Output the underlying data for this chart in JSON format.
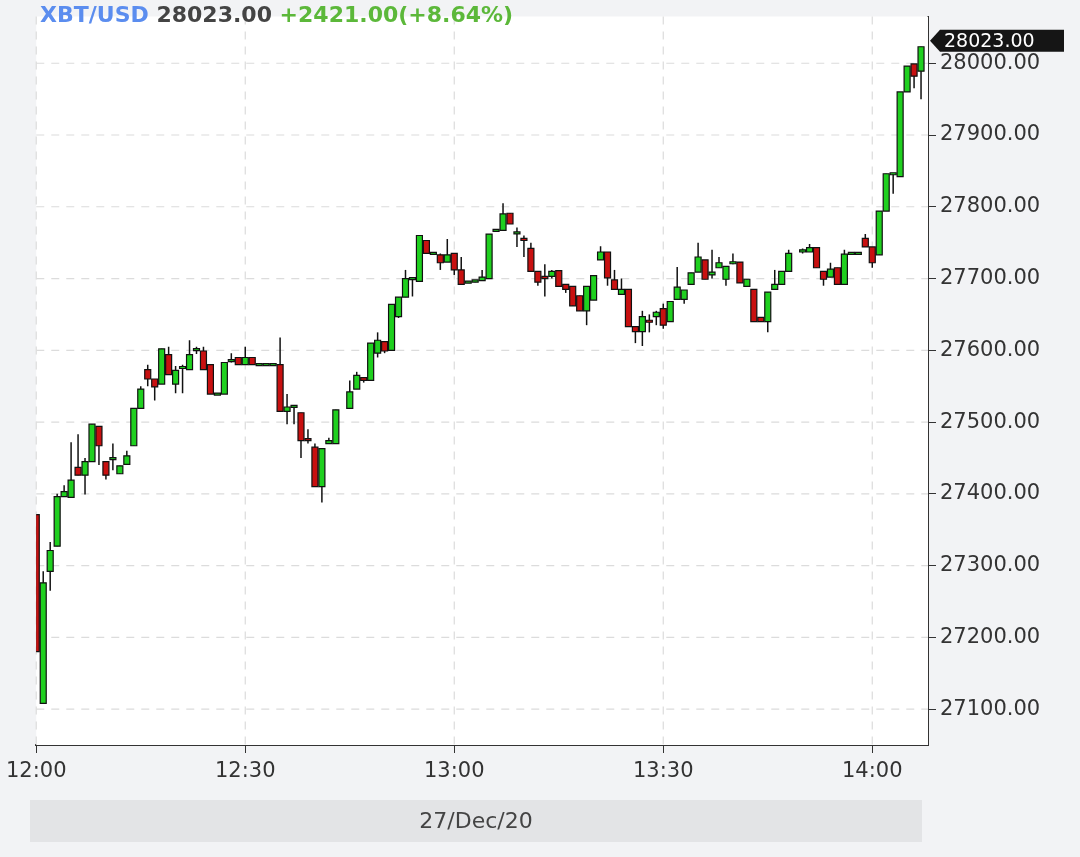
{
  "chart_data": {
    "type": "candlestick",
    "title": "XBT/USD 28023.00",
    "subtitle": "+2421.00(+8.64%)",
    "xlabel": "27/Dec/20",
    "x": [
      "--12-27T12:00",
      "--12-27T12:01",
      "--12-27T12:02",
      "--12-27T12:03",
      "--12-27T12:04",
      "--12-27T12:05",
      "--12-27T12:06",
      "--12-27T12:07",
      "--12-27T12:08",
      "--12-27T12:09",
      "--12-27T12:10",
      "--12-27T12:11",
      "--12-27T12:12",
      "--12-27T12:13",
      "--12-27T12:14",
      "--12-27T12:15",
      "--12-27T12:16",
      "--12-27T12:17",
      "--12-27T12:18",
      "--12-27T12:19",
      "--12-27T12:20",
      "--12-27T12:21",
      "--12-27T12:22",
      "--12-27T12:23",
      "--12-27T12:24",
      "--12-27T12:25",
      "--12-27T12:26",
      "--12-27T12:27",
      "--12-27T12:28",
      "--12-27T12:29",
      "--12-27T12:30",
      "--12-27T12:31",
      "--12-27T12:32",
      "--12-27T12:33",
      "--12-27T12:34",
      "--12-27T12:35",
      "--12-27T12:36",
      "--12-27T12:37",
      "--12-27T12:38",
      "--12-27T12:39",
      "--12-27T12:40",
      "--12-27T12:41",
      "--12-27T12:42",
      "--12-27T12:43",
      "--12-27T12:45",
      "--12-27T12:46",
      "--12-27T12:47",
      "--12-27T12:48",
      "--12-27T12:49",
      "--12-27T12:50",
      "--12-27T12:51",
      "--12-27T12:52",
      "--12-27T12:53",
      "--12-27T12:54",
      "--12-27T12:55",
      "--12-27T12:56",
      "--12-27T12:57",
      "--12-27T12:58",
      "--12-27T12:59",
      "--12-27T13:00",
      "--12-27T13:01",
      "--12-27T13:02",
      "--12-27T13:03",
      "--12-27T13:04",
      "--12-27T13:05",
      "--12-27T13:06",
      "--12-27T13:07",
      "--12-27T13:08",
      "--12-27T13:09",
      "--12-27T13:10",
      "--12-27T13:11",
      "--12-27T13:12",
      "--12-27T13:13",
      "--12-27T13:14",
      "--12-27T13:15",
      "--12-27T13:16",
      "--12-27T13:17",
      "--12-27T13:18",
      "--12-27T13:19",
      "--12-27T13:20",
      "--12-27T13:21",
      "--12-27T13:22",
      "--12-27T13:23",
      "--12-27T13:24",
      "--12-27T13:25",
      "--12-27T13:26",
      "--12-27T13:27",
      "--12-27T13:28",
      "--12-27T13:29",
      "--12-27T13:30",
      "--12-27T13:31",
      "--12-27T13:32",
      "--12-27T13:33",
      "--12-27T13:34",
      "--12-27T13:35",
      "--12-27T13:36",
      "--12-27T13:37",
      "--12-27T13:38",
      "--12-27T13:39",
      "--12-27T13:40",
      "--12-27T13:41",
      "--12-27T13:42",
      "--12-27T13:43",
      "--12-27T13:44",
      "--12-27T13:45",
      "--12-27T13:46",
      "--12-27T13:47",
      "--12-27T13:48",
      "--12-27T13:50",
      "--12-27T13:51",
      "--12-27T13:52",
      "--12-27T13:53",
      "--12-27T13:54",
      "--12-27T13:55",
      "--12-27T13:56",
      "--12-27T13:57",
      "--12-27T13:58",
      "--12-27T13:59",
      "--12-27T14:00",
      "--12-27T14:01",
      "--12-27T14:02",
      "--12-27T14:03",
      "--12-27T14:04",
      "--12-27T14:05",
      "--12-27T14:06",
      "--12-27T14:07"
    ],
    "ohlc": [
      [
        27371,
        27371,
        27180,
        27180
      ],
      [
        27108,
        27292,
        27108,
        27276
      ],
      [
        27292,
        27333,
        27265,
        27321
      ],
      [
        27327,
        27400,
        27327,
        27396
      ],
      [
        27396,
        27412,
        27396,
        27403
      ],
      [
        27395,
        27472,
        27395,
        27419
      ],
      [
        27437,
        27483,
        27426,
        27426
      ],
      [
        27426,
        27450,
        27399,
        27445
      ],
      [
        27445,
        27497,
        27445,
        27497
      ],
      [
        27494,
        27494,
        27440,
        27467
      ],
      [
        27445,
        27445,
        27420,
        27426
      ],
      [
        27449,
        27470,
        27433,
        27449
      ],
      [
        27428,
        27439,
        27428,
        27439
      ],
      [
        27441,
        27460,
        27441,
        27453
      ],
      [
        27467,
        27519,
        27467,
        27519
      ],
      [
        27519,
        27550,
        27519,
        27546
      ],
      [
        27573,
        27580,
        27550,
        27560
      ],
      [
        27560,
        27560,
        27530,
        27549
      ],
      [
        27553,
        27602,
        27553,
        27602
      ],
      [
        27594,
        27605,
        27566,
        27566
      ],
      [
        27553,
        27578,
        27540,
        27572
      ],
      [
        27575,
        27580,
        27540,
        27577
      ],
      [
        27573,
        27614,
        27573,
        27594
      ],
      [
        27600,
        27605,
        27595,
        27602
      ],
      [
        27599,
        27605,
        27573,
        27573
      ],
      [
        27580,
        27580,
        27539,
        27539
      ],
      [
        27539,
        27539,
        27539,
        27539
      ],
      [
        27539,
        27583,
        27539,
        27583
      ],
      [
        27585,
        27596,
        27583,
        27586
      ],
      [
        27590,
        27590,
        27580,
        27580
      ],
      [
        27580,
        27605,
        27580,
        27590
      ],
      [
        27590,
        27590,
        27580,
        27580
      ],
      [
        27580,
        27580,
        27580,
        27580
      ],
      [
        27580,
        27580,
        27580,
        27580
      ],
      [
        27580,
        27580,
        27580,
        27580
      ],
      [
        27580,
        27618,
        27515,
        27515
      ],
      [
        27515,
        27539,
        27497,
        27521
      ],
      [
        27522,
        27523,
        27497,
        27522
      ],
      [
        27513,
        27513,
        27450,
        27474
      ],
      [
        27477,
        27490,
        27470,
        27474
      ],
      [
        27465,
        27470,
        27410,
        27410
      ],
      [
        27410,
        27463,
        27388,
        27463
      ],
      [
        27470,
        27478,
        27470,
        27474
      ],
      [
        27470,
        27517,
        27470,
        27517
      ],
      [
        27519,
        27558,
        27519,
        27542
      ],
      [
        27546,
        27570,
        27546,
        27565
      ],
      [
        27562,
        27562,
        27555,
        27558
      ],
      [
        27558,
        27610,
        27558,
        27610
      ],
      [
        27596,
        27625,
        27590,
        27614
      ],
      [
        27612,
        27612,
        27596,
        27599
      ],
      [
        27600,
        27664,
        27600,
        27664
      ],
      [
        27647,
        27674,
        27645,
        27674
      ],
      [
        27674,
        27712,
        27674,
        27700
      ],
      [
        27700,
        27700,
        27675,
        27700
      ],
      [
        27696,
        27760,
        27696,
        27760
      ],
      [
        27753,
        27753,
        27735,
        27735
      ],
      [
        27735,
        27735,
        27735,
        27735
      ],
      [
        27733,
        27735,
        27712,
        27722
      ],
      [
        27723,
        27755,
        27723,
        27733
      ],
      [
        27735,
        27735,
        27705,
        27712
      ],
      [
        27712,
        27730,
        27692,
        27692
      ],
      [
        27695,
        27695,
        27695,
        27695
      ],
      [
        27695,
        27698,
        27695,
        27698
      ],
      [
        27697,
        27712,
        27697,
        27702
      ],
      [
        27700,
        27762,
        27700,
        27762
      ],
      [
        27767,
        27767,
        27767,
        27767
      ],
      [
        27767,
        27805,
        27767,
        27790
      ],
      [
        27791,
        27791,
        27776,
        27776
      ],
      [
        27763,
        27771,
        27744,
        27764
      ],
      [
        27756,
        27760,
        27730,
        27753
      ],
      [
        27742,
        27750,
        27710,
        27710
      ],
      [
        27710,
        27710,
        27690,
        27695
      ],
      [
        27703,
        27720,
        27675,
        27700
      ],
      [
        27703,
        27712,
        27700,
        27710
      ],
      [
        27711,
        27711,
        27689,
        27689
      ],
      [
        27692,
        27692,
        27680,
        27685
      ],
      [
        27689,
        27689,
        27662,
        27662
      ],
      [
        27676,
        27676,
        27655,
        27655
      ],
      [
        27655,
        27689,
        27635,
        27689
      ],
      [
        27670,
        27704,
        27670,
        27704
      ],
      [
        27726,
        27745,
        27726,
        27737
      ],
      [
        27737,
        27737,
        27690,
        27701
      ],
      [
        27698,
        27712,
        27685,
        27685
      ],
      [
        27678,
        27700,
        27678,
        27685
      ],
      [
        27685,
        27685,
        27633,
        27633
      ],
      [
        27633,
        27633,
        27610,
        27626
      ],
      [
        27626,
        27655,
        27606,
        27647
      ],
      [
        27641,
        27650,
        27625,
        27640
      ],
      [
        27647,
        27655,
        27635,
        27653
      ],
      [
        27658,
        27665,
        27630,
        27635
      ],
      [
        27640,
        27668,
        27640,
        27668
      ],
      [
        27671,
        27716,
        27671,
        27688
      ],
      [
        27671,
        27684,
        27665,
        27684
      ],
      [
        27692,
        27708,
        27692,
        27708
      ],
      [
        27709,
        27750,
        27709,
        27730
      ],
      [
        27726,
        27726,
        27699,
        27699
      ],
      [
        27705,
        27740,
        27700,
        27709
      ],
      [
        27715,
        27730,
        27715,
        27722
      ],
      [
        27699,
        27717,
        27690,
        27717
      ],
      [
        27722,
        27735,
        27720,
        27722
      ],
      [
        27723,
        27723,
        27694,
        27694
      ],
      [
        27689,
        27699,
        27689,
        27699
      ],
      [
        27685,
        27685,
        27640,
        27640
      ],
      [
        27646,
        27646,
        27640,
        27640
      ],
      [
        27640,
        27681,
        27625,
        27681
      ],
      [
        27685,
        27712,
        27685,
        27692
      ],
      [
        27692,
        27710,
        27692,
        27710
      ],
      [
        27710,
        27740,
        27710,
        27735
      ],
      [
        27737,
        27742,
        27735,
        27740
      ],
      [
        27737,
        27748,
        27737,
        27743
      ],
      [
        27743,
        27743,
        27715,
        27715
      ],
      [
        27710,
        27710,
        27690,
        27699
      ],
      [
        27702,
        27722,
        27702,
        27713
      ],
      [
        27715,
        27715,
        27692,
        27692
      ],
      [
        27692,
        27740,
        27692,
        27734
      ],
      [
        27735,
        27735,
        27735,
        27735
      ],
      [
        27735,
        27735,
        27735,
        27735
      ],
      [
        27756,
        27762,
        27744,
        27744
      ],
      [
        27744,
        27744,
        27715,
        27722
      ],
      [
        27733,
        27794,
        27733,
        27794
      ],
      [
        27794,
        27846,
        27794,
        27846
      ],
      [
        27846,
        27846,
        27818,
        27846
      ],
      [
        27842,
        27960,
        27842,
        27960
      ],
      [
        27960,
        27996,
        27960,
        27996
      ],
      [
        27999,
        27999,
        27965,
        27982
      ],
      [
        27989,
        28023,
        27950,
        28023
      ]
    ],
    "colors": [
      "#c81010",
      "#1fd01f",
      "#1fd01f",
      "#1fd01f",
      "#1fd01f",
      "#1fd01f",
      "#c81010",
      "#1fd01f",
      "#1fd01f",
      "#c81010",
      "#c81010",
      "#1fd01f",
      "#1fd01f",
      "#1fd01f",
      "#1fd01f",
      "#1fd01f",
      "#c81010",
      "#c81010",
      "#1fd01f",
      "#c81010",
      "#1fd01f",
      "#1fd01f",
      "#1fd01f",
      "#1fd01f",
      "#c81010",
      "#c81010",
      "#1fd01f",
      "#1fd01f",
      "#1fd01f",
      "#c81010",
      "#1fd01f",
      "#c81010",
      "#1fd01f",
      "#1fd01f",
      "#1fd01f",
      "#c81010",
      "#1fd01f",
      "#1fd01f",
      "#c81010",
      "#c81010",
      "#c81010",
      "#1fd01f",
      "#1fd01f",
      "#1fd01f",
      "#1fd01f",
      "#1fd01f",
      "#c81010",
      "#1fd01f",
      "#1fd01f",
      "#c81010",
      "#1fd01f",
      "#1fd01f",
      "#1fd01f",
      "#1fd01f",
      "#1fd01f",
      "#c81010",
      "#1fd01f",
      "#c81010",
      "#1fd01f",
      "#c81010",
      "#c81010",
      "#1fd01f",
      "#1fd01f",
      "#1fd01f",
      "#1fd01f",
      "#1fd01f",
      "#1fd01f",
      "#c81010",
      "#1fd01f",
      "#c81010",
      "#c81010",
      "#c81010",
      "#c81010",
      "#1fd01f",
      "#c81010",
      "#c81010",
      "#c81010",
      "#c81010",
      "#1fd01f",
      "#1fd01f",
      "#1fd01f",
      "#c81010",
      "#c81010",
      "#1fd01f",
      "#c81010",
      "#c81010",
      "#1fd01f",
      "#c81010",
      "#1fd01f",
      "#c81010",
      "#1fd01f",
      "#1fd01f",
      "#1fd01f",
      "#1fd01f",
      "#1fd01f",
      "#c81010",
      "#1fd01f",
      "#1fd01f",
      "#1fd01f",
      "#1fd01f",
      "#c81010",
      "#1fd01f",
      "#c81010",
      "#c81010",
      "#1fd01f",
      "#1fd01f",
      "#1fd01f",
      "#1fd01f",
      "#1fd01f",
      "#1fd01f",
      "#c81010",
      "#c81010",
      "#1fd01f",
      "#c81010",
      "#1fd01f",
      "#1fd01f",
      "#1fd01f",
      "#c81010",
      "#c81010",
      "#1fd01f",
      "#1fd01f",
      "#1fd01f",
      "#1fd01f",
      "#1fd01f",
      "#c81010",
      "#1fd01f"
    ],
    "xlim": [
      "--12-27T12:00",
      "--12-27T14:08"
    ],
    "xticks": [
      {
        "value": "--12-27T12:00",
        "label": "12:00"
      },
      {
        "value": "--12-27T12:30",
        "label": "12:30"
      },
      {
        "value": "--12-27T13:00",
        "label": "13:00"
      },
      {
        "value": "--12-27T13:30",
        "label": "13:30"
      },
      {
        "value": "--12-27T14:00",
        "label": "14:00"
      }
    ],
    "ylim": [
      27050,
      28065
    ],
    "yticks": [
      {
        "value": 27100,
        "label": "27100.00"
      },
      {
        "value": 27200,
        "label": "27200.00"
      },
      {
        "value": 27300,
        "label": "27300.00"
      },
      {
        "value": 27400,
        "label": "27400.00"
      },
      {
        "value": 27500,
        "label": "27500.00"
      },
      {
        "value": 27600,
        "label": "27600.00"
      },
      {
        "value": 27700,
        "label": "27700.00"
      },
      {
        "value": 27800,
        "label": "27800.00"
      },
      {
        "value": 27900,
        "label": "27900.00"
      },
      {
        "value": 28000,
        "label": "28000.00"
      }
    ],
    "annotations": [
      "28023.00"
    ],
    "grid": true
  }
}
